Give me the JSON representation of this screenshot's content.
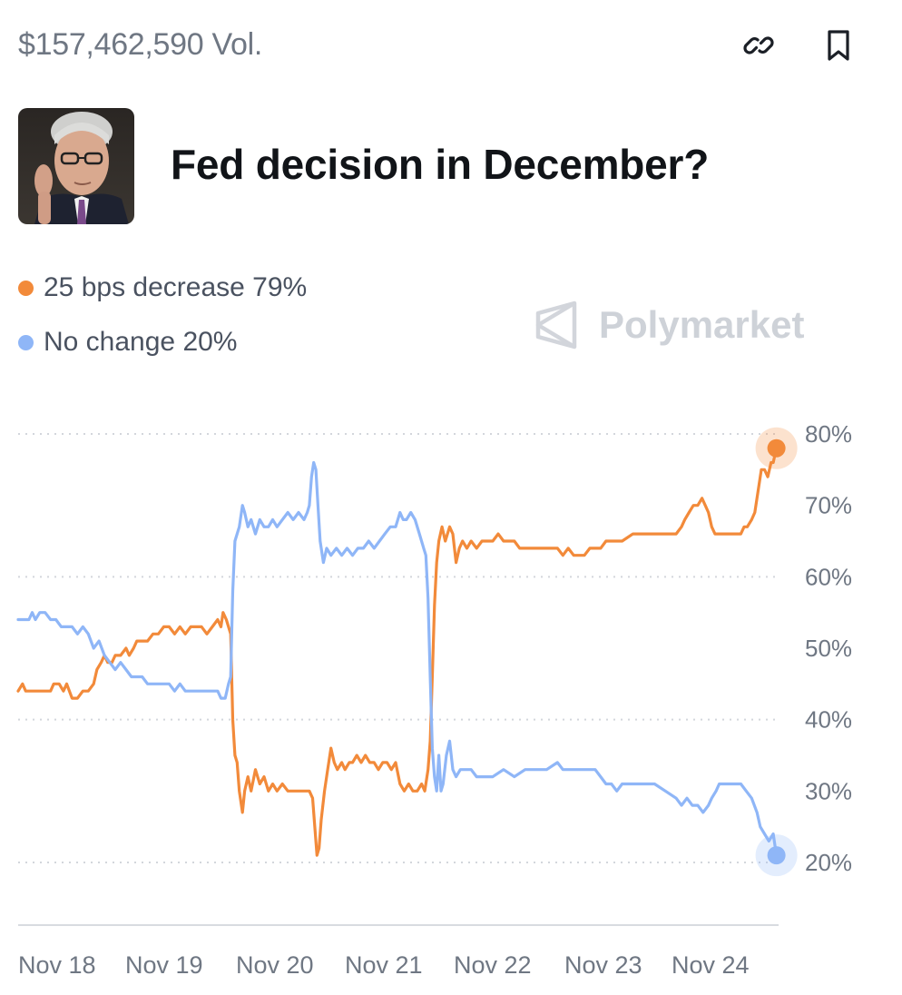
{
  "header": {
    "volume": "$157,462,590 Vol.",
    "link_icon": "link-icon",
    "bookmark_icon": "bookmark-icon"
  },
  "market": {
    "title": "Fed decision in December?",
    "image": "fed-chair-portrait"
  },
  "legend": [
    {
      "label": "25 bps decrease 79%",
      "color": "#F28A3A"
    },
    {
      "label": "No change 20%",
      "color": "#8FB6F7"
    }
  ],
  "watermark": {
    "text": "Polymarket",
    "icon": "polymarket-logo-icon"
  },
  "chart_data": {
    "type": "line",
    "xlabels": [
      "Nov 18",
      "Nov 19",
      "Nov 20",
      "Nov 21",
      "Nov 22",
      "Nov 23",
      "Nov 24"
    ],
    "xlim": [
      0,
      7.05
    ],
    "yticks": [
      "80%",
      "70%",
      "60%",
      "50%",
      "40%",
      "30%",
      "20%"
    ],
    "ylim": [
      20,
      80
    ],
    "grid": true,
    "series": [
      {
        "name": "25 bps decrease",
        "color": "#F28A3A",
        "points": [
          [
            0.0,
            44
          ],
          [
            0.04,
            45
          ],
          [
            0.07,
            44
          ],
          [
            0.3,
            44
          ],
          [
            0.33,
            45
          ],
          [
            0.38,
            45
          ],
          [
            0.42,
            44
          ],
          [
            0.45,
            45
          ],
          [
            0.5,
            43
          ],
          [
            0.55,
            43
          ],
          [
            0.6,
            44
          ],
          [
            0.65,
            44
          ],
          [
            0.7,
            45
          ],
          [
            0.73,
            47
          ],
          [
            0.77,
            48
          ],
          [
            0.8,
            49
          ],
          [
            0.83,
            48
          ],
          [
            0.87,
            48
          ],
          [
            0.9,
            49
          ],
          [
            0.95,
            49
          ],
          [
            1.0,
            50
          ],
          [
            1.03,
            49
          ],
          [
            1.07,
            50
          ],
          [
            1.1,
            51
          ],
          [
            1.15,
            51
          ],
          [
            1.2,
            51
          ],
          [
            1.25,
            52
          ],
          [
            1.3,
            52
          ],
          [
            1.35,
            53
          ],
          [
            1.4,
            53
          ],
          [
            1.45,
            52
          ],
          [
            1.5,
            53
          ],
          [
            1.55,
            52
          ],
          [
            1.6,
            53
          ],
          [
            1.65,
            53
          ],
          [
            1.7,
            53
          ],
          [
            1.75,
            52
          ],
          [
            1.8,
            53
          ],
          [
            1.85,
            54
          ],
          [
            1.88,
            53
          ],
          [
            1.9,
            55
          ],
          [
            1.93,
            54
          ],
          [
            1.95,
            53
          ],
          [
            1.97,
            52
          ],
          [
            1.99,
            40
          ],
          [
            2.01,
            35
          ],
          [
            2.03,
            34
          ],
          [
            2.05,
            30
          ],
          [
            2.08,
            27
          ],
          [
            2.1,
            30
          ],
          [
            2.13,
            32
          ],
          [
            2.16,
            30
          ],
          [
            2.2,
            33
          ],
          [
            2.24,
            31
          ],
          [
            2.28,
            32
          ],
          [
            2.32,
            30
          ],
          [
            2.36,
            31
          ],
          [
            2.4,
            30
          ],
          [
            2.45,
            31
          ],
          [
            2.5,
            30
          ],
          [
            2.55,
            30
          ],
          [
            2.6,
            30
          ],
          [
            2.65,
            30
          ],
          [
            2.7,
            30
          ],
          [
            2.73,
            29
          ],
          [
            2.75,
            25
          ],
          [
            2.77,
            21
          ],
          [
            2.79,
            22
          ],
          [
            2.81,
            26
          ],
          [
            2.84,
            30
          ],
          [
            2.87,
            33
          ],
          [
            2.9,
            36
          ],
          [
            2.93,
            34
          ],
          [
            2.96,
            33
          ],
          [
            3.0,
            34
          ],
          [
            3.03,
            33
          ],
          [
            3.07,
            34
          ],
          [
            3.1,
            34
          ],
          [
            3.14,
            35
          ],
          [
            3.18,
            34
          ],
          [
            3.22,
            35
          ],
          [
            3.26,
            34
          ],
          [
            3.3,
            34
          ],
          [
            3.34,
            33
          ],
          [
            3.38,
            34
          ],
          [
            3.42,
            34
          ],
          [
            3.46,
            33
          ],
          [
            3.5,
            34
          ],
          [
            3.54,
            31
          ],
          [
            3.58,
            30
          ],
          [
            3.62,
            31
          ],
          [
            3.66,
            30
          ],
          [
            3.7,
            30
          ],
          [
            3.74,
            31
          ],
          [
            3.77,
            30
          ],
          [
            3.8,
            33
          ],
          [
            3.82,
            37
          ],
          [
            3.84,
            46
          ],
          [
            3.86,
            56
          ],
          [
            3.88,
            62
          ],
          [
            3.9,
            65
          ],
          [
            3.93,
            67
          ],
          [
            3.96,
            65
          ],
          [
            4.0,
            67
          ],
          [
            4.03,
            66
          ],
          [
            4.06,
            62
          ],
          [
            4.09,
            64
          ],
          [
            4.12,
            65
          ],
          [
            4.16,
            64
          ],
          [
            4.2,
            65
          ],
          [
            4.25,
            64
          ],
          [
            4.3,
            65
          ],
          [
            4.35,
            65
          ],
          [
            4.4,
            65
          ],
          [
            4.45,
            66
          ],
          [
            4.5,
            65
          ],
          [
            4.55,
            65
          ],
          [
            4.6,
            65
          ],
          [
            4.65,
            64
          ],
          [
            4.7,
            64
          ],
          [
            4.8,
            64
          ],
          [
            4.9,
            64
          ],
          [
            5.0,
            64
          ],
          [
            5.05,
            63
          ],
          [
            5.1,
            64
          ],
          [
            5.15,
            63
          ],
          [
            5.25,
            63
          ],
          [
            5.3,
            64
          ],
          [
            5.4,
            64
          ],
          [
            5.45,
            65
          ],
          [
            5.55,
            65
          ],
          [
            5.6,
            65
          ],
          [
            5.7,
            66
          ],
          [
            5.8,
            66
          ],
          [
            5.9,
            66
          ],
          [
            6.0,
            66
          ],
          [
            6.1,
            66
          ],
          [
            6.15,
            67
          ],
          [
            6.18,
            68
          ],
          [
            6.22,
            69
          ],
          [
            6.26,
            70
          ],
          [
            6.3,
            70
          ],
          [
            6.34,
            71
          ],
          [
            6.37,
            70
          ],
          [
            6.4,
            69
          ],
          [
            6.43,
            67
          ],
          [
            6.46,
            66
          ],
          [
            6.5,
            66
          ],
          [
            6.6,
            66
          ],
          [
            6.7,
            66
          ],
          [
            6.73,
            67
          ],
          [
            6.76,
            67
          ],
          [
            6.8,
            68
          ],
          [
            6.83,
            69
          ],
          [
            6.86,
            72
          ],
          [
            6.89,
            75
          ],
          [
            6.92,
            75
          ],
          [
            6.95,
            74
          ],
          [
            6.98,
            76
          ],
          [
            7.0,
            76
          ],
          [
            7.03,
            78
          ]
        ]
      },
      {
        "name": "No change",
        "color": "#8FB6F7",
        "points": [
          [
            0.0,
            54
          ],
          [
            0.05,
            54
          ],
          [
            0.1,
            54
          ],
          [
            0.13,
            55
          ],
          [
            0.16,
            54
          ],
          [
            0.2,
            55
          ],
          [
            0.25,
            55
          ],
          [
            0.3,
            54
          ],
          [
            0.35,
            54
          ],
          [
            0.4,
            53
          ],
          [
            0.45,
            53
          ],
          [
            0.5,
            53
          ],
          [
            0.55,
            52
          ],
          [
            0.6,
            53
          ],
          [
            0.65,
            52
          ],
          [
            0.7,
            50
          ],
          [
            0.75,
            51
          ],
          [
            0.8,
            49
          ],
          [
            0.85,
            48
          ],
          [
            0.9,
            47
          ],
          [
            0.95,
            48
          ],
          [
            1.0,
            47
          ],
          [
            1.05,
            46
          ],
          [
            1.1,
            46
          ],
          [
            1.15,
            46
          ],
          [
            1.2,
            45
          ],
          [
            1.3,
            45
          ],
          [
            1.35,
            45
          ],
          [
            1.4,
            45
          ],
          [
            1.45,
            44
          ],
          [
            1.5,
            45
          ],
          [
            1.55,
            44
          ],
          [
            1.6,
            44
          ],
          [
            1.7,
            44
          ],
          [
            1.75,
            44
          ],
          [
            1.8,
            44
          ],
          [
            1.85,
            44
          ],
          [
            1.88,
            43
          ],
          [
            1.92,
            43
          ],
          [
            1.95,
            45
          ],
          [
            1.97,
            46
          ],
          [
            1.99,
            58
          ],
          [
            2.01,
            65
          ],
          [
            2.03,
            66
          ],
          [
            2.05,
            67
          ],
          [
            2.08,
            70
          ],
          [
            2.1,
            69
          ],
          [
            2.13,
            67
          ],
          [
            2.16,
            68
          ],
          [
            2.2,
            66
          ],
          [
            2.24,
            68
          ],
          [
            2.28,
            67
          ],
          [
            2.32,
            67
          ],
          [
            2.36,
            68
          ],
          [
            2.4,
            67
          ],
          [
            2.45,
            68
          ],
          [
            2.5,
            69
          ],
          [
            2.55,
            68
          ],
          [
            2.6,
            69
          ],
          [
            2.65,
            68
          ],
          [
            2.68,
            69
          ],
          [
            2.7,
            70
          ],
          [
            2.72,
            74
          ],
          [
            2.74,
            76
          ],
          [
            2.76,
            75
          ],
          [
            2.78,
            70
          ],
          [
            2.8,
            65
          ],
          [
            2.83,
            62
          ],
          [
            2.86,
            64
          ],
          [
            2.9,
            63
          ],
          [
            2.95,
            64
          ],
          [
            3.0,
            63
          ],
          [
            3.05,
            64
          ],
          [
            3.1,
            63
          ],
          [
            3.15,
            64
          ],
          [
            3.2,
            64
          ],
          [
            3.25,
            65
          ],
          [
            3.3,
            64
          ],
          [
            3.35,
            65
          ],
          [
            3.4,
            66
          ],
          [
            3.45,
            67
          ],
          [
            3.5,
            67
          ],
          [
            3.54,
            69
          ],
          [
            3.57,
            68
          ],
          [
            3.6,
            68
          ],
          [
            3.64,
            69
          ],
          [
            3.68,
            68
          ],
          [
            3.72,
            66
          ],
          [
            3.76,
            64
          ],
          [
            3.78,
            63
          ],
          [
            3.8,
            57
          ],
          [
            3.82,
            46
          ],
          [
            3.84,
            36
          ],
          [
            3.86,
            32
          ],
          [
            3.88,
            30
          ],
          [
            3.9,
            35
          ],
          [
            3.92,
            30
          ],
          [
            3.94,
            31
          ],
          [
            3.97,
            35
          ],
          [
            4.0,
            37
          ],
          [
            4.03,
            33
          ],
          [
            4.06,
            32
          ],
          [
            4.1,
            33
          ],
          [
            4.15,
            33
          ],
          [
            4.2,
            33
          ],
          [
            4.25,
            32
          ],
          [
            4.3,
            32
          ],
          [
            4.4,
            32
          ],
          [
            4.5,
            33
          ],
          [
            4.6,
            32
          ],
          [
            4.7,
            33
          ],
          [
            4.8,
            33
          ],
          [
            4.9,
            33
          ],
          [
            5.0,
            34
          ],
          [
            5.05,
            33
          ],
          [
            5.1,
            33
          ],
          [
            5.15,
            33
          ],
          [
            5.2,
            33
          ],
          [
            5.3,
            33
          ],
          [
            5.35,
            33
          ],
          [
            5.4,
            32
          ],
          [
            5.45,
            31
          ],
          [
            5.5,
            31
          ],
          [
            5.55,
            30
          ],
          [
            5.6,
            31
          ],
          [
            5.65,
            31
          ],
          [
            5.7,
            31
          ],
          [
            5.8,
            31
          ],
          [
            5.9,
            31
          ],
          [
            6.0,
            30
          ],
          [
            6.1,
            29
          ],
          [
            6.15,
            28
          ],
          [
            6.2,
            29
          ],
          [
            6.25,
            28
          ],
          [
            6.3,
            28
          ],
          [
            6.35,
            27
          ],
          [
            6.4,
            28
          ],
          [
            6.43,
            29
          ],
          [
            6.47,
            30
          ],
          [
            6.5,
            31
          ],
          [
            6.55,
            31
          ],
          [
            6.6,
            31
          ],
          [
            6.7,
            31
          ],
          [
            6.75,
            30
          ],
          [
            6.8,
            29
          ],
          [
            6.85,
            27
          ],
          [
            6.88,
            25
          ],
          [
            6.92,
            24
          ],
          [
            6.96,
            23
          ],
          [
            7.0,
            24
          ],
          [
            7.03,
            21
          ]
        ]
      }
    ]
  }
}
